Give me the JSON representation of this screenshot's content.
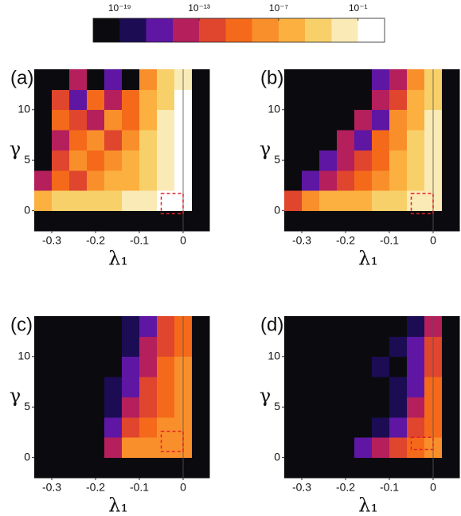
{
  "chart_data": [
    {
      "type": "colorbar",
      "log": true,
      "lim": [
        1e-21,
        10
      ],
      "colors": [
        "#0b0b0f",
        "#1c0c54",
        "#5e16a3",
        "#b41f5c",
        "#e0452e",
        "#f46a1a",
        "#f98f2b",
        "#fbb03f",
        "#f8d06a",
        "#faeab5",
        "#ffffff"
      ],
      "ticks": [
        {
          "value": 1e-19,
          "label": "10⁻¹⁹"
        },
        {
          "value": 1e-13,
          "label": "10⁻¹³"
        },
        {
          "value": 1e-07,
          "label": "10⁻⁷"
        },
        {
          "value": 0.1,
          "label": "10⁻¹"
        }
      ]
    },
    {
      "type": "heatmap",
      "label": "(a)",
      "x_label": "λ₁",
      "y_label": "γ",
      "xlim": [
        -0.34,
        0.06
      ],
      "ylim": [
        -2,
        14
      ],
      "xticks": [
        -0.3,
        -0.2,
        -0.1,
        0
      ],
      "yticks": [
        0,
        5,
        10
      ],
      "x_edges": [
        -0.34,
        -0.3,
        -0.26,
        -0.22,
        -0.18,
        -0.14,
        -0.1,
        -0.06,
        -0.02,
        0.02,
        0.06
      ],
      "y_edges": [
        -2,
        0,
        2,
        4,
        6,
        8,
        10,
        12,
        14
      ],
      "z": [
        [
          1e-20,
          1e-20,
          1e-20,
          1e-20,
          1e-20,
          1e-20,
          1e-20,
          1e-20,
          1e-20,
          1e-20
        ],
        [
          1e-06,
          0.0001,
          0.0001,
          0.0001,
          0.0001,
          0.01,
          0.01,
          1,
          1,
          1e-20
        ],
        [
          1e-14,
          1e-10,
          1e-12,
          1e-08,
          1e-06,
          1e-06,
          0.0001,
          0.01,
          1,
          1e-20
        ],
        [
          1e-20,
          1e-12,
          1e-08,
          1e-10,
          1e-08,
          1e-06,
          0.0001,
          0.01,
          1,
          1e-20
        ],
        [
          1e-20,
          1e-14,
          1e-10,
          1e-08,
          1e-12,
          1e-08,
          0.0001,
          0.01,
          1,
          1e-20
        ],
        [
          1e-20,
          1e-10,
          1e-12,
          1e-14,
          1e-08,
          1e-10,
          1e-06,
          0.01,
          1,
          1e-20
        ],
        [
          1e-20,
          1e-12,
          1e-16,
          1e-10,
          1e-14,
          1e-10,
          1e-06,
          0.0001,
          1,
          1e-20
        ],
        [
          1e-20,
          1e-20,
          1e-14,
          1e-20,
          1e-16,
          1e-20,
          1e-08,
          0.0001,
          0.01,
          1e-20
        ]
      ],
      "reference_line_x": 0,
      "highlight_box": {
        "x": [
          -0.05,
          0
        ],
        "y": [
          -0.3,
          1.7
        ]
      }
    },
    {
      "type": "heatmap",
      "label": "(b)",
      "x_label": "λ₁",
      "y_label": "γ",
      "xlim": [
        -0.34,
        0.06
      ],
      "ylim": [
        -2,
        14
      ],
      "xticks": [
        -0.3,
        -0.2,
        -0.1,
        0
      ],
      "yticks": [
        0,
        5,
        10
      ],
      "x_edges": [
        -0.34,
        -0.3,
        -0.26,
        -0.22,
        -0.18,
        -0.14,
        -0.1,
        -0.06,
        -0.02,
        0.02,
        0.06
      ],
      "y_edges": [
        -2,
        0,
        2,
        4,
        6,
        8,
        10,
        12,
        14
      ],
      "z": [
        [
          1e-20,
          1e-20,
          1e-20,
          1e-20,
          1e-20,
          1e-20,
          1e-20,
          1e-20,
          1e-20,
          1e-20
        ],
        [
          1e-12,
          1e-08,
          1e-06,
          1e-06,
          1e-06,
          0.0001,
          0.0001,
          0.01,
          0.01,
          1e-20
        ],
        [
          1e-20,
          1e-16,
          1e-14,
          1e-12,
          1e-10,
          1e-08,
          1e-06,
          0.0001,
          0.01,
          1e-20
        ],
        [
          1e-20,
          1e-20,
          1e-16,
          1e-14,
          1e-12,
          1e-10,
          1e-06,
          0.0001,
          0.01,
          1e-20
        ],
        [
          1e-20,
          1e-20,
          1e-20,
          1e-14,
          1e-16,
          1e-10,
          1e-08,
          0.0001,
          0.01,
          1e-20
        ],
        [
          1e-20,
          1e-20,
          1e-20,
          1e-20,
          1e-14,
          1e-16,
          1e-08,
          1e-06,
          0.01,
          1e-20
        ],
        [
          1e-20,
          1e-20,
          1e-20,
          1e-20,
          1e-20,
          1e-14,
          1e-12,
          1e-06,
          0.0001,
          1e-20
        ],
        [
          1e-20,
          1e-20,
          1e-20,
          1e-20,
          1e-20,
          1e-16,
          1e-14,
          1e-08,
          0.0001,
          1e-20
        ]
      ],
      "reference_line_x": 0,
      "highlight_box": {
        "x": [
          -0.05,
          0
        ],
        "y": [
          -0.3,
          1.7
        ]
      }
    },
    {
      "type": "heatmap",
      "label": "(c)",
      "x_label": "λ₁",
      "y_label": "γ",
      "xlim": [
        -0.34,
        0.06
      ],
      "ylim": [
        -2,
        14
      ],
      "xticks": [
        -0.3,
        -0.2,
        -0.1,
        0
      ],
      "yticks": [
        0,
        5,
        10
      ],
      "x_edges": [
        -0.34,
        -0.3,
        -0.26,
        -0.22,
        -0.18,
        -0.14,
        -0.1,
        -0.06,
        -0.02,
        0.02,
        0.06
      ],
      "y_edges": [
        -2,
        0,
        2,
        4,
        6,
        8,
        10,
        12,
        14
      ],
      "z": [
        [
          1e-20,
          1e-20,
          1e-20,
          1e-20,
          1e-20,
          1e-20,
          1e-20,
          1e-20,
          1e-20,
          1e-20
        ],
        [
          1e-20,
          1e-20,
          1e-20,
          1e-20,
          1e-14,
          1e-08,
          1e-08,
          1e-08,
          1e-08,
          1e-20
        ],
        [
          1e-20,
          1e-20,
          1e-20,
          1e-20,
          1e-16,
          1e-12,
          1e-10,
          1e-08,
          1e-08,
          1e-20
        ],
        [
          1e-20,
          1e-20,
          1e-20,
          1e-20,
          1e-18,
          1e-14,
          1e-12,
          1e-10,
          1e-08,
          1e-20
        ],
        [
          1e-20,
          1e-20,
          1e-20,
          1e-20,
          1e-18,
          1e-16,
          1e-12,
          1e-10,
          1e-08,
          1e-20
        ],
        [
          1e-20,
          1e-20,
          1e-20,
          1e-20,
          1e-20,
          1e-16,
          1e-14,
          1e-10,
          1e-08,
          1e-20
        ],
        [
          1e-20,
          1e-20,
          1e-20,
          1e-20,
          1e-20,
          1e-18,
          1e-14,
          1e-12,
          1e-10,
          1e-20
        ],
        [
          1e-20,
          1e-20,
          1e-20,
          1e-20,
          1e-20,
          1e-18,
          1e-16,
          1e-12,
          1e-10,
          1e-20
        ]
      ],
      "reference_line_x": 0,
      "highlight_box": {
        "x": [
          -0.05,
          0
        ],
        "y": [
          0.6,
          2.6
        ]
      }
    },
    {
      "type": "heatmap",
      "label": "(d)",
      "x_label": "λ₁",
      "y_label": "γ",
      "xlim": [
        -0.34,
        0.06
      ],
      "ylim": [
        -2,
        14
      ],
      "xticks": [
        -0.3,
        -0.2,
        -0.1,
        0
      ],
      "yticks": [
        0,
        5,
        10
      ],
      "x_edges": [
        -0.34,
        -0.3,
        -0.26,
        -0.22,
        -0.18,
        -0.14,
        -0.1,
        -0.06,
        -0.02,
        0.02,
        0.06
      ],
      "y_edges": [
        -2,
        0,
        2,
        4,
        6,
        8,
        10,
        12,
        14
      ],
      "z": [
        [
          1e-20,
          1e-20,
          1e-20,
          1e-20,
          1e-20,
          1e-20,
          1e-20,
          1e-20,
          1e-20,
          1e-20
        ],
        [
          1e-20,
          1e-20,
          1e-20,
          1e-20,
          1e-16,
          1e-14,
          1e-12,
          1e-10,
          1e-08,
          1e-20
        ],
        [
          1e-20,
          1e-20,
          1e-20,
          1e-20,
          1e-20,
          1e-18,
          1e-16,
          1e-12,
          1e-10,
          1e-20
        ],
        [
          1e-20,
          1e-20,
          1e-20,
          1e-20,
          1e-20,
          1e-20,
          1e-18,
          1e-14,
          1e-10,
          1e-20
        ],
        [
          1e-20,
          1e-20,
          1e-20,
          1e-20,
          1e-20,
          1e-20,
          1e-18,
          1e-16,
          1e-10,
          1e-20
        ],
        [
          1e-20,
          1e-20,
          1e-20,
          1e-20,
          1e-20,
          1e-18,
          1e-20,
          1e-16,
          1e-12,
          1e-20
        ],
        [
          1e-20,
          1e-20,
          1e-20,
          1e-20,
          1e-20,
          1e-20,
          1e-18,
          1e-16,
          1e-12,
          1e-20
        ],
        [
          1e-20,
          1e-20,
          1e-20,
          1e-20,
          1e-20,
          1e-20,
          1e-20,
          1e-18,
          1e-14,
          1e-20
        ]
      ],
      "reference_line_x": 0,
      "highlight_box": {
        "x": [
          -0.05,
          0
        ],
        "y": [
          0.8,
          2.0
        ]
      }
    }
  ]
}
